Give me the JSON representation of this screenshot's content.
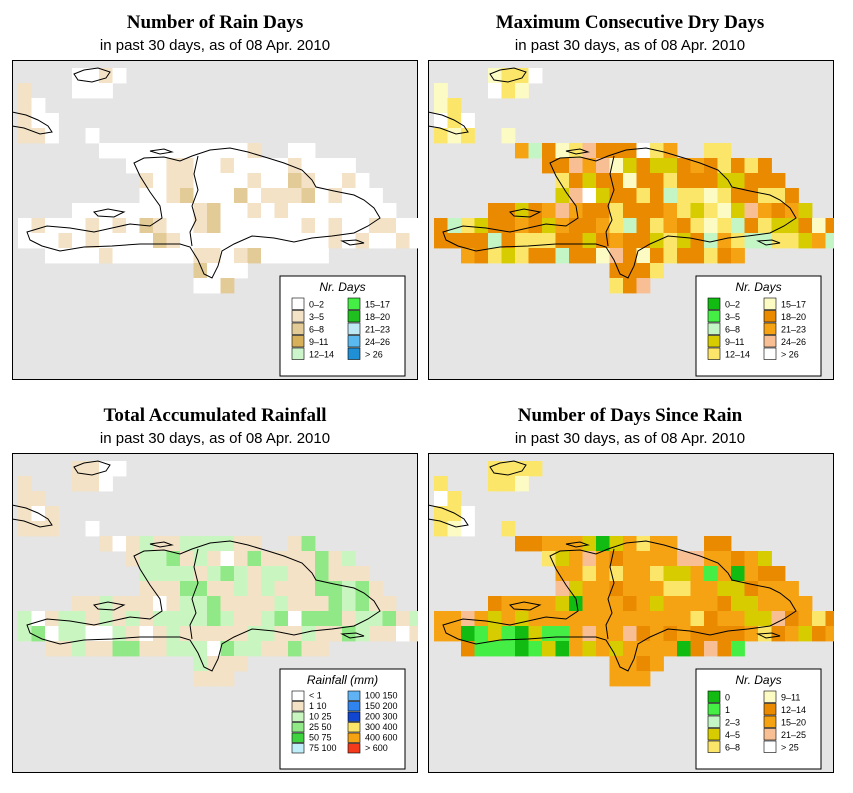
{
  "panels": [
    {
      "id": "rain-days",
      "title": "Number of Rain Days",
      "subtitle": "in past 30 days, as of  08 Apr. 2010",
      "legend": {
        "title": "Nr. Days",
        "items": [
          {
            "label": "0–2",
            "color": "#ffffff"
          },
          {
            "label": "3–5",
            "color": "#f3e2c6"
          },
          {
            "label": "6–8",
            "color": "#e3cb98"
          },
          {
            "label": "9–11",
            "color": "#d7b05c"
          },
          {
            "label": "12–14",
            "color": "#ccf5cc"
          },
          {
            "label": "15–17",
            "color": "#44ee44"
          },
          {
            "label": "18–20",
            "color": "#1fbf1f"
          },
          {
            "label": "21–23",
            "color": "#bfe8f5"
          },
          {
            "label": "24–26",
            "color": "#5ab9ee"
          },
          {
            "label": "> 26",
            "color": "#1f8fd6"
          }
        ]
      }
    },
    {
      "id": "dry-days",
      "title": "Maximum Consecutive Dry Days",
      "subtitle": "in past 30 days, as of  08 Apr. 2010",
      "legend": {
        "title": "Nr. Days",
        "items": [
          {
            "label": "0–2",
            "color": "#11bb11"
          },
          {
            "label": "3–5",
            "color": "#44ee44"
          },
          {
            "label": "6–8",
            "color": "#c4f5c4"
          },
          {
            "label": "9–11",
            "color": "#d6cc00"
          },
          {
            "label": "12–14",
            "color": "#fbe66a"
          },
          {
            "label": "15–17",
            "color": "#fdfbc4"
          },
          {
            "label": "18–20",
            "color": "#e98a00"
          },
          {
            "label": "21–23",
            "color": "#f5a313"
          },
          {
            "label": "24–26",
            "color": "#f9bf94"
          },
          {
            "label": "> 26",
            "color": "#ffffff"
          }
        ]
      }
    },
    {
      "id": "rainfall",
      "title": "Total Accumulated Rainfall",
      "subtitle": "in past 30 days, as of  08 Apr. 2010",
      "legend": {
        "title": "Rainfall (mm)",
        "items": [
          {
            "label": "< 1",
            "color": "#ffffff"
          },
          {
            "label": "1     10",
            "color": "#f3e2c6"
          },
          {
            "label": "10     25",
            "color": "#c9f5c0"
          },
          {
            "label": "25     50",
            "color": "#90e986"
          },
          {
            "label": "50     75",
            "color": "#3fd43f"
          },
          {
            "label": "75   100",
            "color": "#bfeef8"
          },
          {
            "label": "100   150",
            "color": "#5fb3f5"
          },
          {
            "label": "150   200",
            "color": "#2f84f0"
          },
          {
            "label": "200   300",
            "color": "#1046d0"
          },
          {
            "label": "300   400",
            "color": "#fbe66a"
          },
          {
            "label": "400   600",
            "color": "#f5a313"
          },
          {
            "label": "> 600",
            "color": "#f43a1a"
          }
        ]
      }
    },
    {
      "id": "days-since-rain",
      "title": "Number of Days Since Rain",
      "subtitle": "in past 30 days, as of  08 Apr. 2010",
      "legend": {
        "title": "Nr. Days",
        "items": [
          {
            "label": "0",
            "color": "#11bb11"
          },
          {
            "label": "1",
            "color": "#44ee44"
          },
          {
            "label": "2–3",
            "color": "#c4f5c4"
          },
          {
            "label": "4–5",
            "color": "#d6cc00"
          },
          {
            "label": "6–8",
            "color": "#fbe66a"
          },
          {
            "label": "9–11",
            "color": "#fdfbc4"
          },
          {
            "label": "12–14",
            "color": "#e98a00"
          },
          {
            "label": "15–20",
            "color": "#f5a313"
          },
          {
            "label": "21–25",
            "color": "#f9bf94"
          },
          {
            "label": "> 25",
            "color": "#ffffff"
          }
        ]
      }
    }
  ],
  "colors": {
    "ocean": "#e5e5e5",
    "coast": "#000000"
  }
}
